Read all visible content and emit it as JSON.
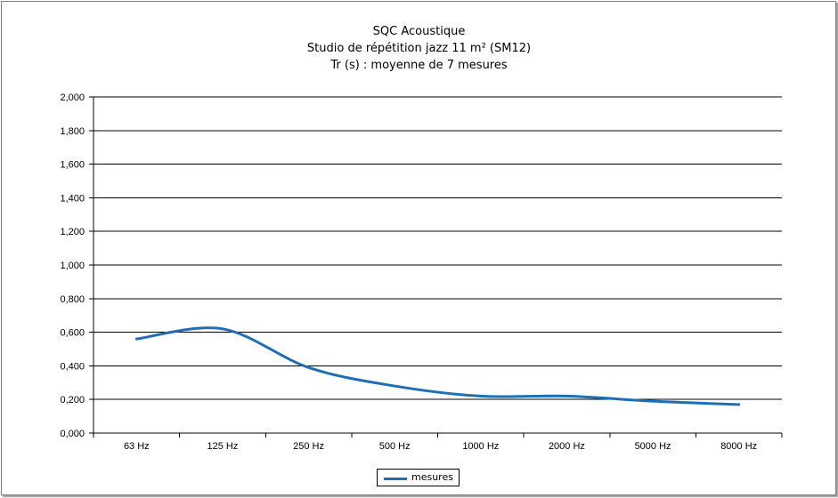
{
  "chart_data": {
    "type": "line",
    "title": "SQC Acoustique",
    "subtitle": "Studio de répétition jazz 11 m² (SM12)",
    "subtitle2": "Tr (s) : moyenne de 7 mesures",
    "xlabel": "",
    "ylabel": "",
    "categories": [
      "63 Hz",
      "125 Hz",
      "250 Hz",
      "500 Hz",
      "1000 Hz",
      "2000 Hz",
      "5000 Hz",
      "8000 Hz"
    ],
    "series": [
      {
        "name": "mesures",
        "values": [
          0.56,
          0.62,
          0.39,
          0.28,
          0.22,
          0.22,
          0.19,
          0.17
        ],
        "color": "#1f6fb4"
      }
    ],
    "ylim": [
      0,
      2.0
    ],
    "yticks": [
      "0,000",
      "0,200",
      "0,400",
      "0,600",
      "0,800",
      "1,000",
      "1,200",
      "1,400",
      "1,600",
      "1,800",
      "2,000"
    ],
    "grid": true,
    "legend_position": "bottom",
    "smooth": true
  }
}
